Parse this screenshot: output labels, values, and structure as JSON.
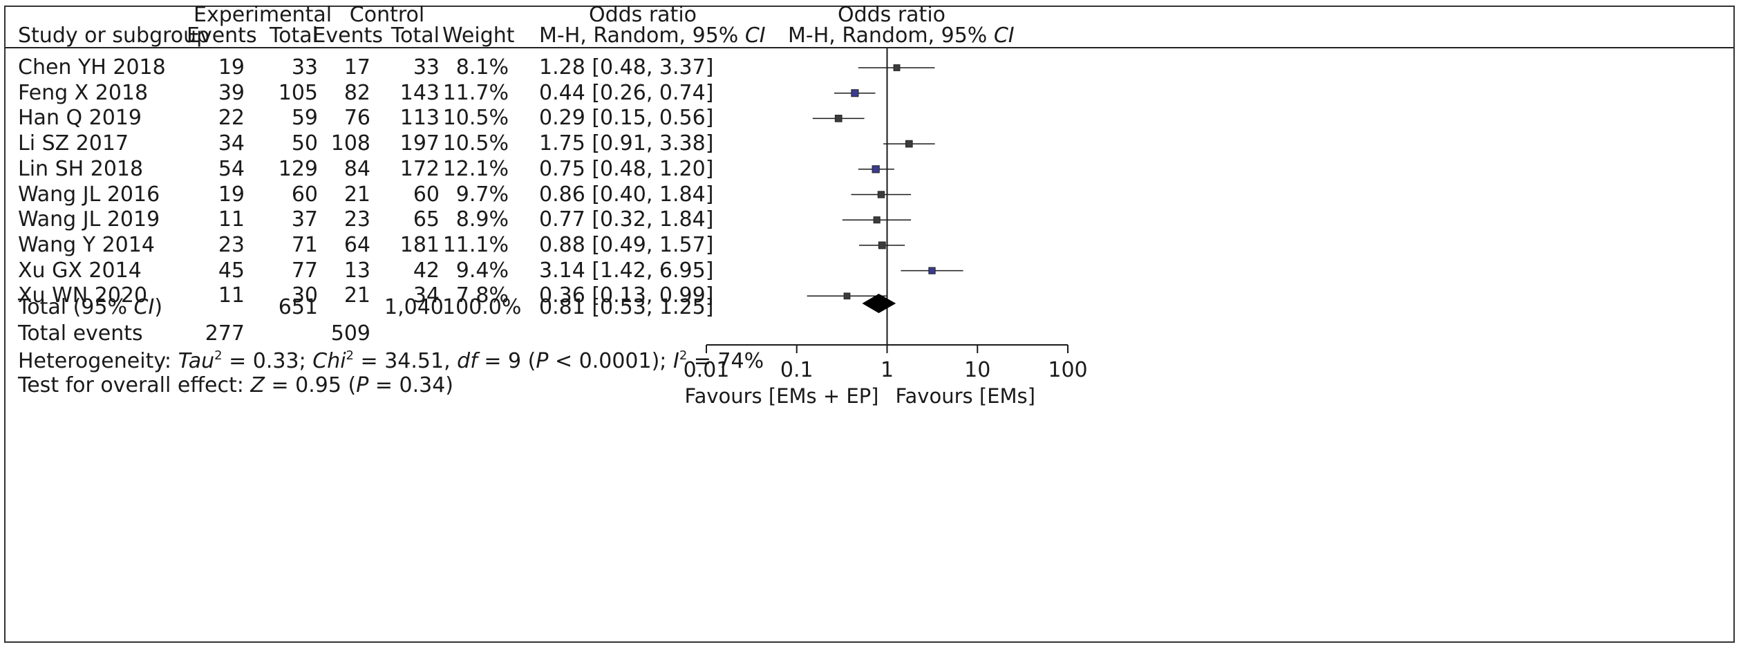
{
  "headers": {
    "group_experimental": "Experimental",
    "group_control": "Control",
    "study": "Study or subgroup",
    "events": "Events",
    "total": "Total",
    "weight": "Weight",
    "or_title": "Odds ratio",
    "or_method": "M-H, Random, 95% ",
    "ci_italic": "CI"
  },
  "studies": [
    {
      "name": "Chen YH 2018",
      "exp_events": "19",
      "exp_total": "33",
      "ctl_events": "17",
      "ctl_total": "33",
      "weight": "8.1%",
      "or_text": "1.28 [0.48, 3.37]"
    },
    {
      "name": "Feng X 2018",
      "exp_events": "39",
      "exp_total": "105",
      "ctl_events": "82",
      "ctl_total": "143",
      "weight": "11.7%",
      "or_text": "0.44 [0.26, 0.74]"
    },
    {
      "name": "Han Q 2019",
      "exp_events": "22",
      "exp_total": "59",
      "ctl_events": "76",
      "ctl_total": "113",
      "weight": "10.5%",
      "or_text": "0.29 [0.15, 0.56]"
    },
    {
      "name": "Li SZ 2017",
      "exp_events": "34",
      "exp_total": "50",
      "ctl_events": "108",
      "ctl_total": "197",
      "weight": "10.5%",
      "or_text": "1.75 [0.91, 3.38]"
    },
    {
      "name": "Lin SH 2018",
      "exp_events": "54",
      "exp_total": "129",
      "ctl_events": "84",
      "ctl_total": "172",
      "weight": "12.1%",
      "or_text": "0.75 [0.48, 1.20]"
    },
    {
      "name": "Wang JL 2016",
      "exp_events": "19",
      "exp_total": "60",
      "ctl_events": "21",
      "ctl_total": "60",
      "weight": "9.7%",
      "or_text": "0.86 [0.40, 1.84]"
    },
    {
      "name": "Wang JL 2019",
      "exp_events": "11",
      "exp_total": "37",
      "ctl_events": "23",
      "ctl_total": "65",
      "weight": "8.9%",
      "or_text": "0.77 [0.32, 1.84]"
    },
    {
      "name": "Wang Y 2014",
      "exp_events": "23",
      "exp_total": "71",
      "ctl_events": "64",
      "ctl_total": "181",
      "weight": "11.1%",
      "or_text": "0.88 [0.49, 1.57]"
    },
    {
      "name": "Xu GX 2014",
      "exp_events": "45",
      "exp_total": "77",
      "ctl_events": "13",
      "ctl_total": "42",
      "weight": "9.4%",
      "or_text": "3.14 [1.42, 6.95]"
    },
    {
      "name": "Xu WN 2020",
      "exp_events": "11",
      "exp_total": "30",
      "ctl_events": "21",
      "ctl_total": "34",
      "weight": "7.8%",
      "or_text": "0.36 [0.13, 0.99]"
    }
  ],
  "total": {
    "label_prefix": "Total (95% ",
    "label_italic": "CI",
    "label_suffix": ")",
    "exp_total": "651",
    "ctl_total": "1,040",
    "weight": "100.0%",
    "or_text": "0.81 [0.53, 1.25]"
  },
  "total_events": {
    "label": "Total events",
    "exp": "277",
    "ctl": "509"
  },
  "heterogeneity": {
    "prefix": "Heterogeneity: ",
    "tau_label": "Tau",
    "tau_value": " = 0.33; ",
    "chi_label": "Chi",
    "chi_value": " = 34.51, ",
    "df_label": "df",
    "df_value": " = 9 (",
    "p_label": "P",
    "p_value": " < 0.0001); ",
    "i_label": "I",
    "i_value": " = 74%",
    "sup2": "2"
  },
  "overall_effect": {
    "prefix": "Test for overall effect: ",
    "z_label": "Z",
    "z_value": " = 0.95 (",
    "p_label": "P",
    "p_value": " = 0.34)"
  },
  "chart_data": {
    "type": "scatter",
    "subtype": "forest-plot",
    "x_scale": "log",
    "xlim": [
      0.01,
      100
    ],
    "xticks": [
      0.01,
      0.1,
      1,
      10,
      100
    ],
    "xtick_labels": [
      "0.01",
      "0.1",
      "1",
      "10",
      "100"
    ],
    "reference_line": 1,
    "favours_left": "Favours [EMs + EP]",
    "favours_right": "Favours [EMs]",
    "points": [
      {
        "study": "Chen YH 2018",
        "or": 1.28,
        "lower": 0.48,
        "upper": 3.37,
        "weight": 8.1
      },
      {
        "study": "Feng X 2018",
        "or": 0.44,
        "lower": 0.26,
        "upper": 0.74,
        "weight": 11.7
      },
      {
        "study": "Han Q 2019",
        "or": 0.29,
        "lower": 0.15,
        "upper": 0.56,
        "weight": 10.5
      },
      {
        "study": "Li SZ 2017",
        "or": 1.75,
        "lower": 0.91,
        "upper": 3.38,
        "weight": 10.5
      },
      {
        "study": "Lin SH 2018",
        "or": 0.75,
        "lower": 0.48,
        "upper": 1.2,
        "weight": 12.1
      },
      {
        "study": "Wang JL 2016",
        "or": 0.86,
        "lower": 0.4,
        "upper": 1.84,
        "weight": 9.7
      },
      {
        "study": "Wang JL 2019",
        "or": 0.77,
        "lower": 0.32,
        "upper": 1.84,
        "weight": 8.9
      },
      {
        "study": "Wang Y 2014",
        "or": 0.88,
        "lower": 0.49,
        "upper": 1.57,
        "weight": 11.1
      },
      {
        "study": "Xu GX 2014",
        "or": 3.14,
        "lower": 1.42,
        "upper": 6.95,
        "weight": 9.4
      },
      {
        "study": "Xu WN 2020",
        "or": 0.36,
        "lower": 0.13,
        "upper": 0.99,
        "weight": 7.8
      }
    ],
    "pooled": {
      "or": 0.81,
      "lower": 0.53,
      "upper": 1.25
    },
    "colors": {
      "marker_default": "#3c3c3c",
      "marker_highlight": "#3b3b8f",
      "line": "#1a1a1a"
    },
    "highlighted_studies": [
      "Feng X 2018",
      "Lin SH 2018",
      "Xu GX 2014"
    ]
  }
}
